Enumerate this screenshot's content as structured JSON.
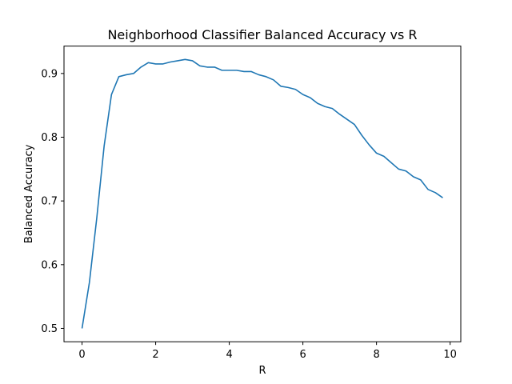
{
  "chart_data": {
    "type": "line",
    "title": "Neighborhood Classifier Balanced Accuracy vs R",
    "xlabel": "R",
    "ylabel": "Balanced Accuracy",
    "xlim": [
      -0.49,
      10.29
    ],
    "ylim": [
      0.479,
      0.943
    ],
    "xticks": [
      0,
      2,
      4,
      6,
      8,
      10
    ],
    "xtick_labels": [
      "0",
      "2",
      "4",
      "6",
      "8",
      "10"
    ],
    "yticks": [
      0.5,
      0.6,
      0.7,
      0.8,
      0.9
    ],
    "ytick_labels": [
      "0.5",
      "0.6",
      "0.7",
      "0.8",
      "0.9"
    ],
    "grid": false,
    "legend": "none",
    "series_color": "#1f77b4",
    "x": [
      0.0,
      0.2,
      0.4,
      0.6,
      0.8,
      1.0,
      1.2,
      1.4,
      1.6,
      1.8,
      2.0,
      2.2,
      2.4,
      2.6,
      2.8,
      3.0,
      3.2,
      3.4,
      3.6,
      3.8,
      4.0,
      4.2,
      4.4,
      4.6,
      4.8,
      5.0,
      5.2,
      5.4,
      5.6,
      5.8,
      6.0,
      6.2,
      6.4,
      6.6,
      6.8,
      7.0,
      7.2,
      7.4,
      7.6,
      7.8,
      8.0,
      8.2,
      8.4,
      8.6,
      8.8,
      9.0,
      9.2,
      9.4,
      9.6,
      9.8
    ],
    "y": [
      0.5,
      0.572,
      0.673,
      0.786,
      0.867,
      0.895,
      0.898,
      0.9,
      0.91,
      0.917,
      0.915,
      0.915,
      0.918,
      0.92,
      0.922,
      0.92,
      0.912,
      0.91,
      0.91,
      0.905,
      0.905,
      0.905,
      0.903,
      0.903,
      0.898,
      0.895,
      0.89,
      0.88,
      0.878,
      0.875,
      0.867,
      0.862,
      0.853,
      0.848,
      0.845,
      0.836,
      0.828,
      0.82,
      0.803,
      0.788,
      0.775,
      0.77,
      0.76,
      0.75,
      0.747,
      0.738,
      0.733,
      0.718,
      0.713,
      0.705
    ]
  }
}
